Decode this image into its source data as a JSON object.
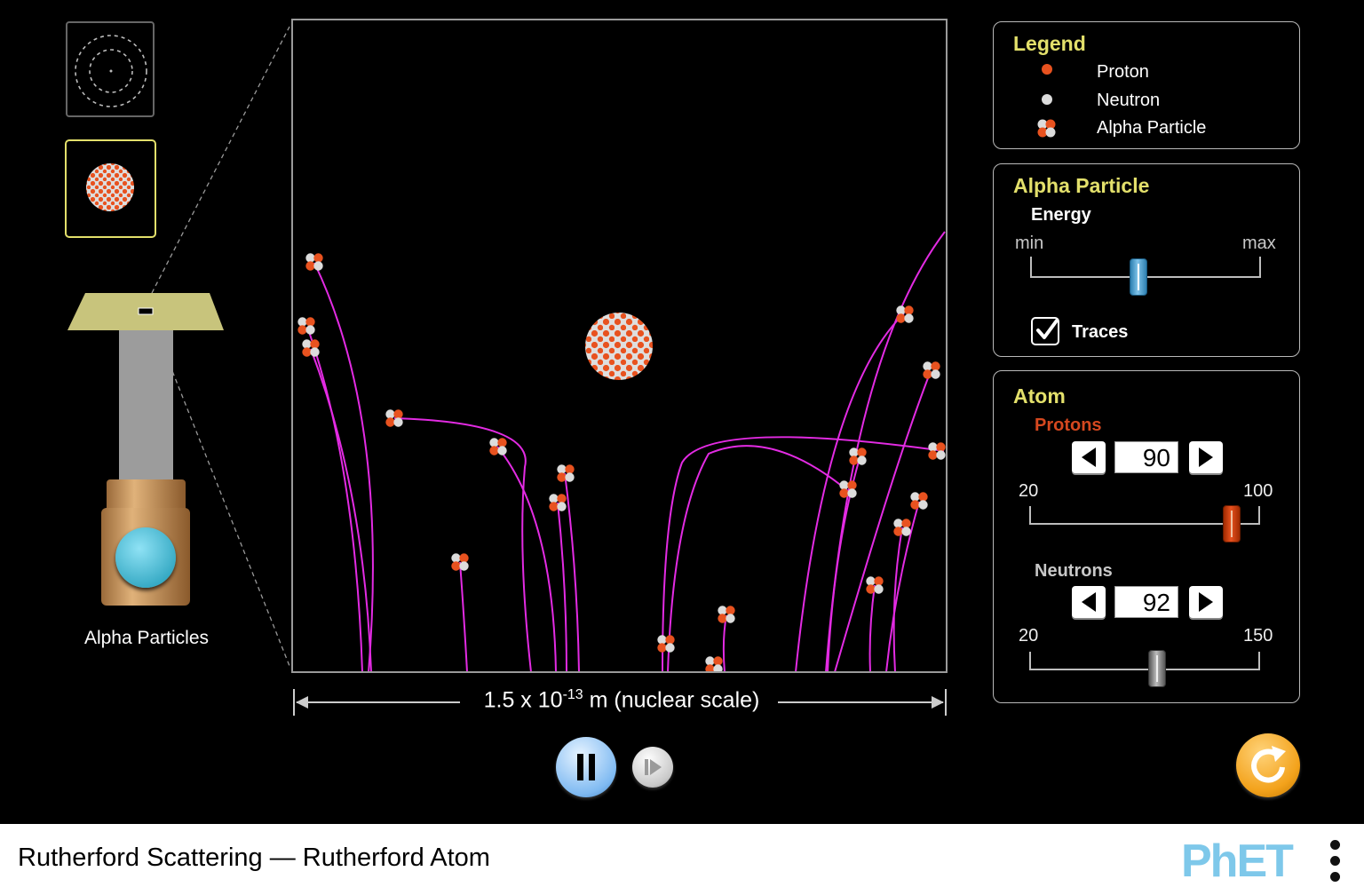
{
  "app": {
    "title": "Rutherford Scattering — Rutherford Atom",
    "brand": "PhET"
  },
  "gun": {
    "label": "Alpha Particles"
  },
  "scale": {
    "prefix": "1.5 x 10",
    "exponent": "-13",
    "suffix": "m (nuclear scale)"
  },
  "legend": {
    "title": "Legend",
    "items": [
      {
        "label": "Proton",
        "icon": "proton-icon"
      },
      {
        "label": "Neutron",
        "icon": "neutron-icon"
      },
      {
        "label": "Alpha Particle",
        "icon": "alpha-particle-icon"
      }
    ]
  },
  "alpha_panel": {
    "title": "Alpha Particle",
    "energy_label": "Energy",
    "min_label": "min",
    "max_label": "max",
    "energy_fraction": 0.47,
    "traces_label": "Traces",
    "traces_checked": true
  },
  "atom_panel": {
    "title": "Atom",
    "protons_label": "Protons",
    "protons_value": "90",
    "protons_min": "20",
    "protons_max": "100",
    "neutrons_label": "Neutrons",
    "neutrons_value": "92",
    "neutrons_min": "20",
    "neutrons_max": "150"
  },
  "colors": {
    "proton": "#e8521f",
    "neutron": "#dcdcdc",
    "trace": "#e32be3",
    "panel_title": "#e3e06b",
    "protons_label": "#d5481f",
    "neutrons_label": "#c8c8c8",
    "play_button": "#a9d6ff",
    "reset_button": "#f3a21b"
  }
}
